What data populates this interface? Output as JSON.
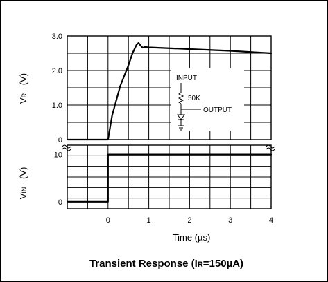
{
  "chart_data": [
    {
      "type": "line",
      "panel": "upper",
      "ylabel": "VR - (V)",
      "xlim": [
        -1,
        4
      ],
      "ylim": [
        0,
        3
      ],
      "y_ticks": [
        "0",
        "1.0",
        "2.0",
        "3.0"
      ],
      "grid": true,
      "series": [
        {
          "x": [
            -1,
            0,
            0.1,
            0.3,
            0.5,
            0.6,
            0.7,
            0.75,
            0.8,
            0.85,
            0.9,
            1.0,
            2.0,
            3.0,
            4.0
          ],
          "y": [
            0,
            0,
            0.7,
            1.55,
            2.15,
            2.5,
            2.75,
            2.8,
            2.72,
            2.66,
            2.68,
            2.67,
            2.62,
            2.57,
            2.5
          ]
        }
      ]
    },
    {
      "type": "line",
      "panel": "lower",
      "ylabel": "VIN - (V)",
      "xlabel": "Time (µs)",
      "xlim": [
        -1,
        4
      ],
      "ylim": [
        -1.5,
        12
      ],
      "y_ticks": [
        "0",
        "10"
      ],
      "x_ticks": [
        "0",
        "1",
        "2",
        "3",
        "4"
      ],
      "grid": true,
      "series": [
        {
          "x": [
            -1,
            0,
            0,
            4
          ],
          "y": [
            0,
            0,
            10,
            10
          ]
        }
      ]
    }
  ],
  "title": {
    "prefix": "Transient Response (I",
    "sub": "R",
    "suffix": "=150µA)"
  },
  "upper_axis_label": {
    "main": "V",
    "sub": "R",
    "rest": " - (V)"
  },
  "lower_axis_label": {
    "main": "V",
    "sub": "IN",
    "rest": " - (V)"
  },
  "x_axis_label": "Time (µs)",
  "inset": {
    "input_label": "INPUT",
    "resistor_label": "50K",
    "output_label": "OUTPUT"
  }
}
